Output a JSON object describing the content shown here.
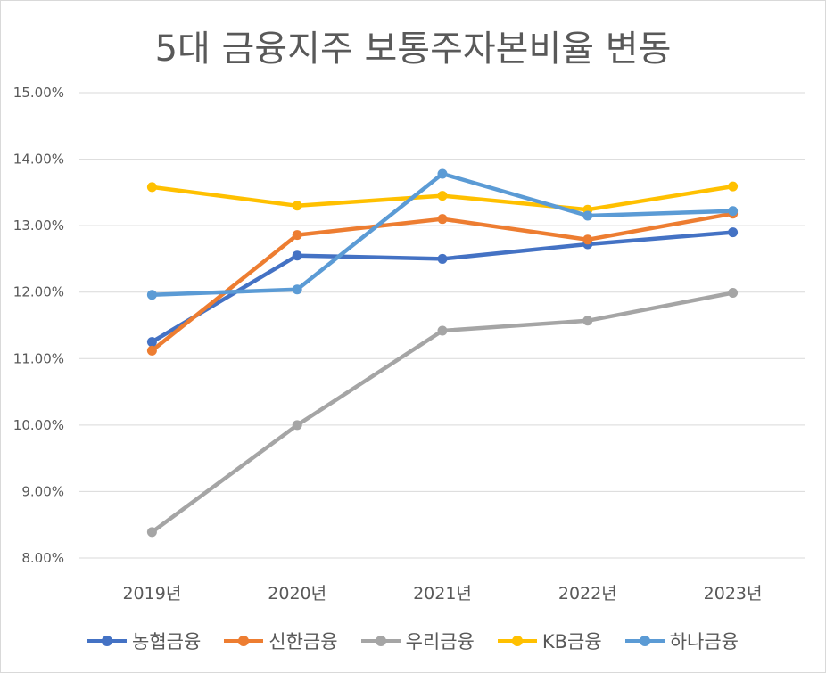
{
  "chart_data": {
    "type": "line",
    "title": "5대 금융지주 보통주자본비율 변동",
    "xlabel": "",
    "ylabel": "",
    "ylim": [
      8.0,
      15.0
    ],
    "yticks": [
      8.0,
      9.0,
      10.0,
      11.0,
      12.0,
      13.0,
      14.0,
      15.0
    ],
    "ytick_labels": [
      "8.00%",
      "9.00%",
      "10.00%",
      "11.00%",
      "12.00%",
      "13.00%",
      "14.00%",
      "15.00%"
    ],
    "categories": [
      "2019년",
      "2020년",
      "2021년",
      "2022년",
      "2023년"
    ],
    "grid": true,
    "legend_position": "bottom",
    "series": [
      {
        "name": "농협금융",
        "color": "#4472C4",
        "values": [
          11.25,
          12.55,
          12.5,
          12.72,
          12.9
        ]
      },
      {
        "name": "신한금융",
        "color": "#ED7D31",
        "values": [
          11.12,
          12.86,
          13.1,
          12.79,
          13.18
        ]
      },
      {
        "name": "우리금융",
        "color": "#A5A5A5",
        "values": [
          8.39,
          10.0,
          11.42,
          11.57,
          11.99
        ]
      },
      {
        "name": "KB금융",
        "color": "#FFC000",
        "values": [
          13.58,
          13.3,
          13.45,
          13.24,
          13.59
        ]
      },
      {
        "name": "하나금융",
        "color": "#5B9BD5",
        "values": [
          11.96,
          12.04,
          13.78,
          13.15,
          13.22
        ]
      }
    ]
  }
}
